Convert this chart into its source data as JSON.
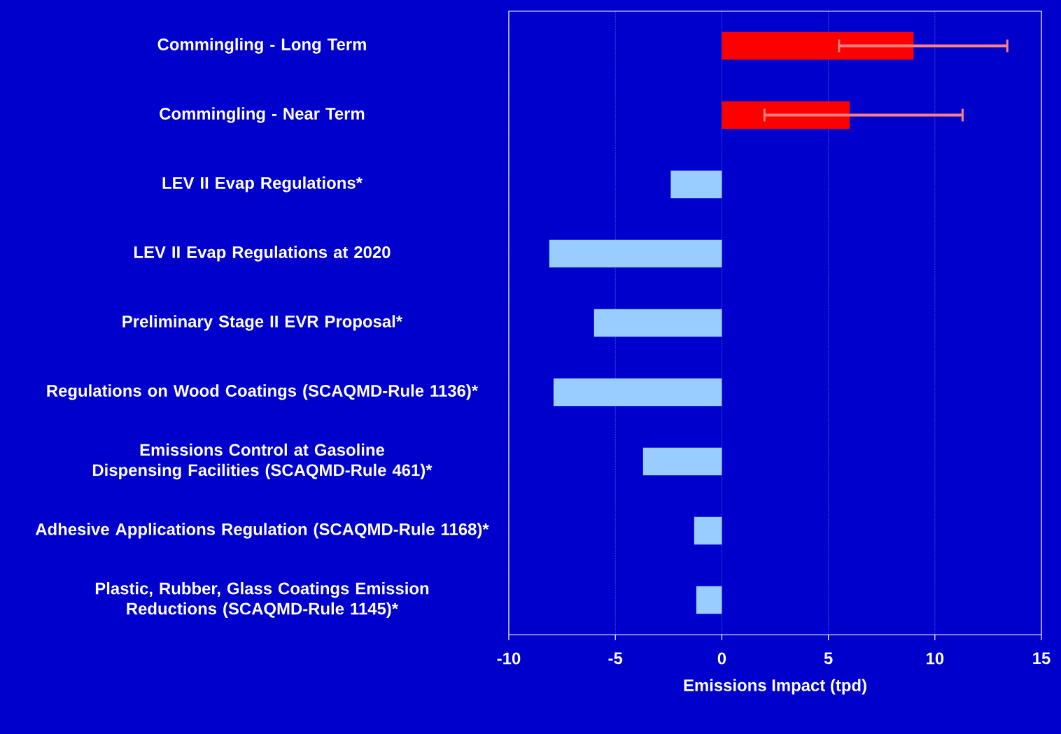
{
  "chart_data": {
    "type": "bar",
    "orientation": "horizontal",
    "categories": [
      "Commingling - Long Term",
      "Commingling - Near Term",
      "LEV II Evap Regulations*",
      "LEV II Evap Regulations at 2020",
      "Preliminary Stage II EVR Proposal*",
      "Regulations on Wood Coatings (SCAQMD-Rule 1136)*",
      "Emissions Control at Gasoline Dispensing Facilities (SCAQMD-Rule 461)*",
      "Adhesive Applications Regulation (SCAQMD-Rule 1168)*",
      "Plastic, Rubber, Glass Coatings Emission Reductions (SCAQMD-Rule 1145)*"
    ],
    "values": [
      9.0,
      6.0,
      -2.4,
      -8.1,
      -6.0,
      -7.9,
      -3.7,
      -1.3,
      -1.2
    ],
    "colors": [
      "#ff0000",
      "#ff0000",
      "#99ccff",
      "#99ccff",
      "#99ccff",
      "#99ccff",
      "#99ccff",
      "#99ccff",
      "#99ccff"
    ],
    "errors": [
      [
        5.5,
        13.4
      ],
      [
        2.0,
        11.3
      ],
      null,
      null,
      null,
      null,
      null,
      null,
      null
    ],
    "xlabel": "Emissions Impact (tpd)",
    "xlim": [
      -10,
      15
    ],
    "xticks": [
      -10,
      -5,
      0,
      5,
      10,
      15
    ],
    "grid": "x"
  }
}
